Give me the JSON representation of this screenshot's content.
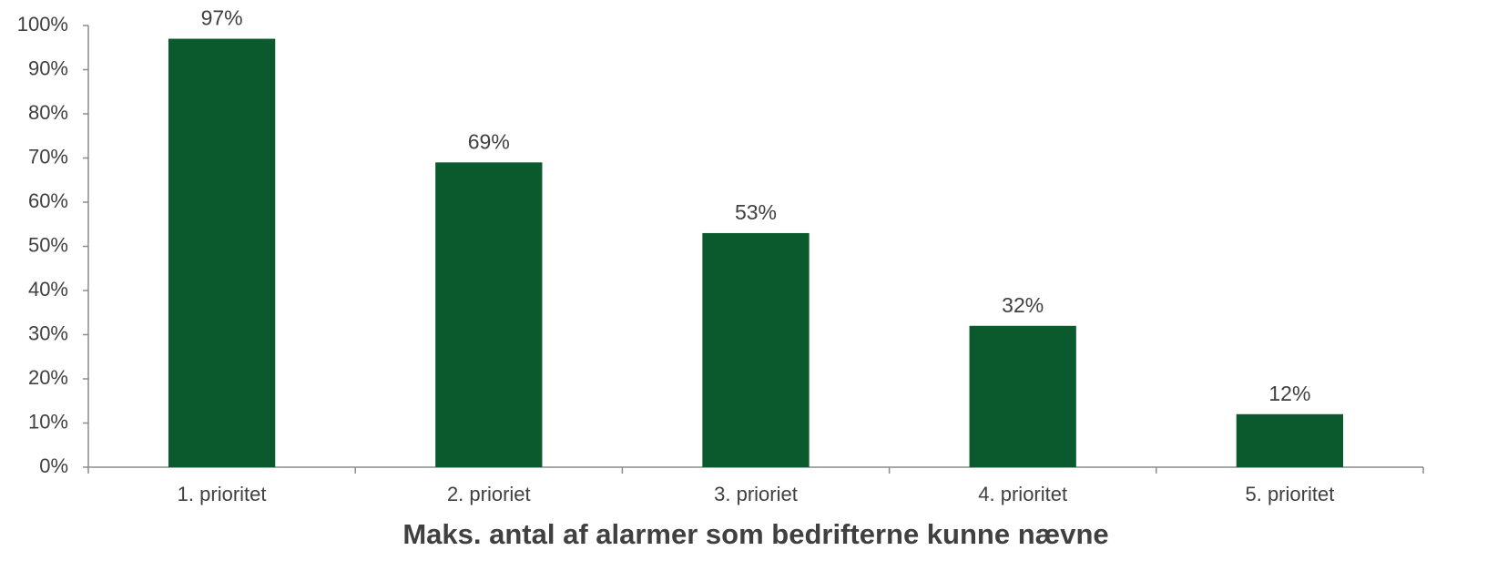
{
  "chart_data": {
    "type": "bar",
    "xlabel": "Maks. antal af alarmer som bedrifterne kunne nævne",
    "categories": [
      "1. prioritet",
      "2. prioriet",
      "3. prioriet",
      "4. prioritet",
      "5. prioritet"
    ],
    "values": [
      97,
      69,
      53,
      32,
      12
    ],
    "value_labels": [
      "97%",
      "69%",
      "53%",
      "32%",
      "12%"
    ],
    "color": "#0b5a2e",
    "ylim": [
      0,
      100
    ],
    "yticks": [
      {
        "value": 0,
        "label": "0%"
      },
      {
        "value": 10,
        "label": "10%"
      },
      {
        "value": 20,
        "label": "20%"
      },
      {
        "value": 30,
        "label": "30%"
      },
      {
        "value": 40,
        "label": "40%"
      },
      {
        "value": 50,
        "label": "50%"
      },
      {
        "value": 60,
        "label": "60%"
      },
      {
        "value": 70,
        "label": "70%"
      },
      {
        "value": 80,
        "label": "80%"
      },
      {
        "value": 90,
        "label": "90%"
      },
      {
        "value": 100,
        "label": "100%"
      }
    ],
    "grid": false
  }
}
